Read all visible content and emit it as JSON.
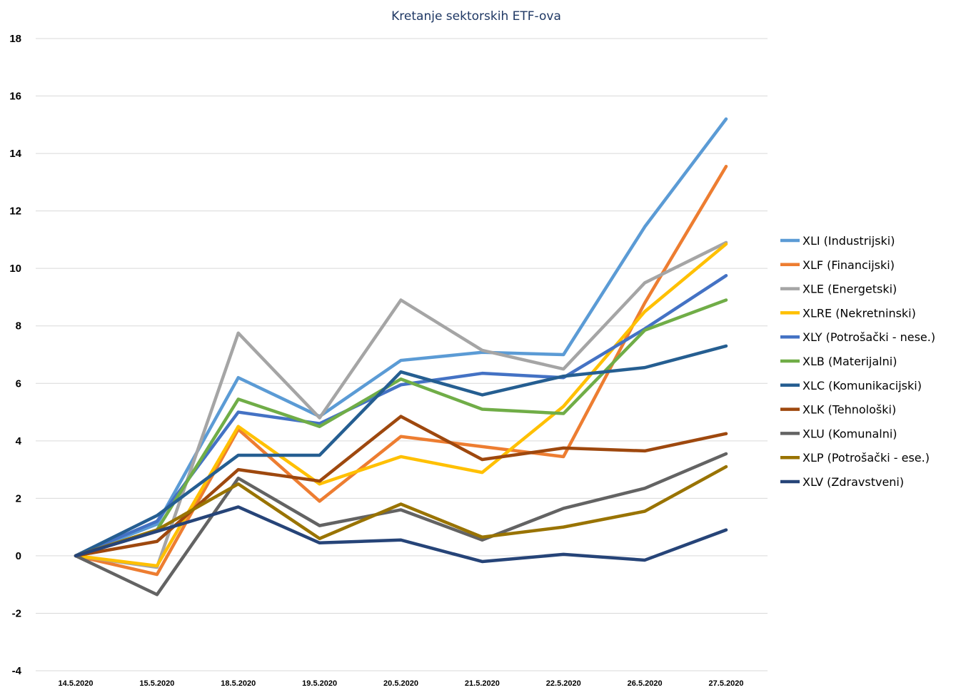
{
  "chart_data": {
    "type": "line",
    "title": "Kretanje sektorskih ETF-ova",
    "xlabel": "",
    "ylabel": "",
    "ylim": [
      -4,
      18
    ],
    "yticks": [
      -4,
      -2,
      0,
      2,
      4,
      6,
      8,
      10,
      12,
      14,
      16,
      18
    ],
    "grid": true,
    "legend_position": "right",
    "categories": [
      "14.5.2020",
      "15.5.2020",
      "18.5.2020",
      "19.5.2020",
      "20.5.2020",
      "21.5.2020",
      "22.5.2020",
      "26.5.2020",
      "27.5.2020"
    ],
    "series": [
      {
        "name": "XLI (Industrijski)",
        "color": "#5B9BD5",
        "values": [
          0,
          1.1,
          6.2,
          4.85,
          6.8,
          7.08,
          7.0,
          11.45,
          15.2
        ]
      },
      {
        "name": "XLF (Financijski)",
        "color": "#ED7D31",
        "values": [
          0,
          -0.65,
          4.4,
          1.9,
          4.15,
          3.8,
          3.45,
          8.8,
          13.55
        ]
      },
      {
        "name": "XLE (Energetski)",
        "color": "#A5A5A5",
        "values": [
          0,
          -0.4,
          7.75,
          4.8,
          8.9,
          7.15,
          6.5,
          9.5,
          10.9
        ]
      },
      {
        "name": "XLRE (Nekretninski)",
        "color": "#FFC000",
        "values": [
          0,
          -0.35,
          4.5,
          2.5,
          3.45,
          2.9,
          5.2,
          8.5,
          10.85
        ]
      },
      {
        "name": "XLY (Potrošački - nese.)",
        "color": "#4472C4",
        "values": [
          0,
          1.2,
          5.0,
          4.6,
          5.95,
          6.35,
          6.2,
          7.9,
          9.75
        ]
      },
      {
        "name": "XLB (Materijalni)",
        "color": "#70AD47",
        "values": [
          0,
          0.9,
          5.45,
          4.5,
          6.15,
          5.1,
          4.95,
          7.85,
          8.9
        ]
      },
      {
        "name": "XLC (Komunikacijski)",
        "color": "#255E91",
        "values": [
          0,
          1.4,
          3.5,
          3.5,
          6.4,
          5.6,
          6.25,
          6.55,
          7.3
        ]
      },
      {
        "name": "XLK (Tehnološki)",
        "color": "#9E480E",
        "values": [
          0,
          0.5,
          3.0,
          2.6,
          4.85,
          3.35,
          3.75,
          3.65,
          4.25
        ]
      },
      {
        "name": "XLU (Komunalni)",
        "color": "#636363",
        "values": [
          0,
          -1.35,
          2.7,
          1.05,
          1.6,
          0.55,
          1.65,
          2.35,
          3.55
        ]
      },
      {
        "name": "XLP (Potrošački - ese.)",
        "color": "#997300",
        "values": [
          0,
          0.9,
          2.5,
          0.6,
          1.8,
          0.65,
          1.0,
          1.55,
          3.1
        ]
      },
      {
        "name": "XLV (Zdravstveni)",
        "color": "#264478",
        "values": [
          0,
          0.85,
          1.7,
          0.45,
          0.55,
          -0.2,
          0.05,
          -0.15,
          0.9
        ]
      }
    ]
  }
}
